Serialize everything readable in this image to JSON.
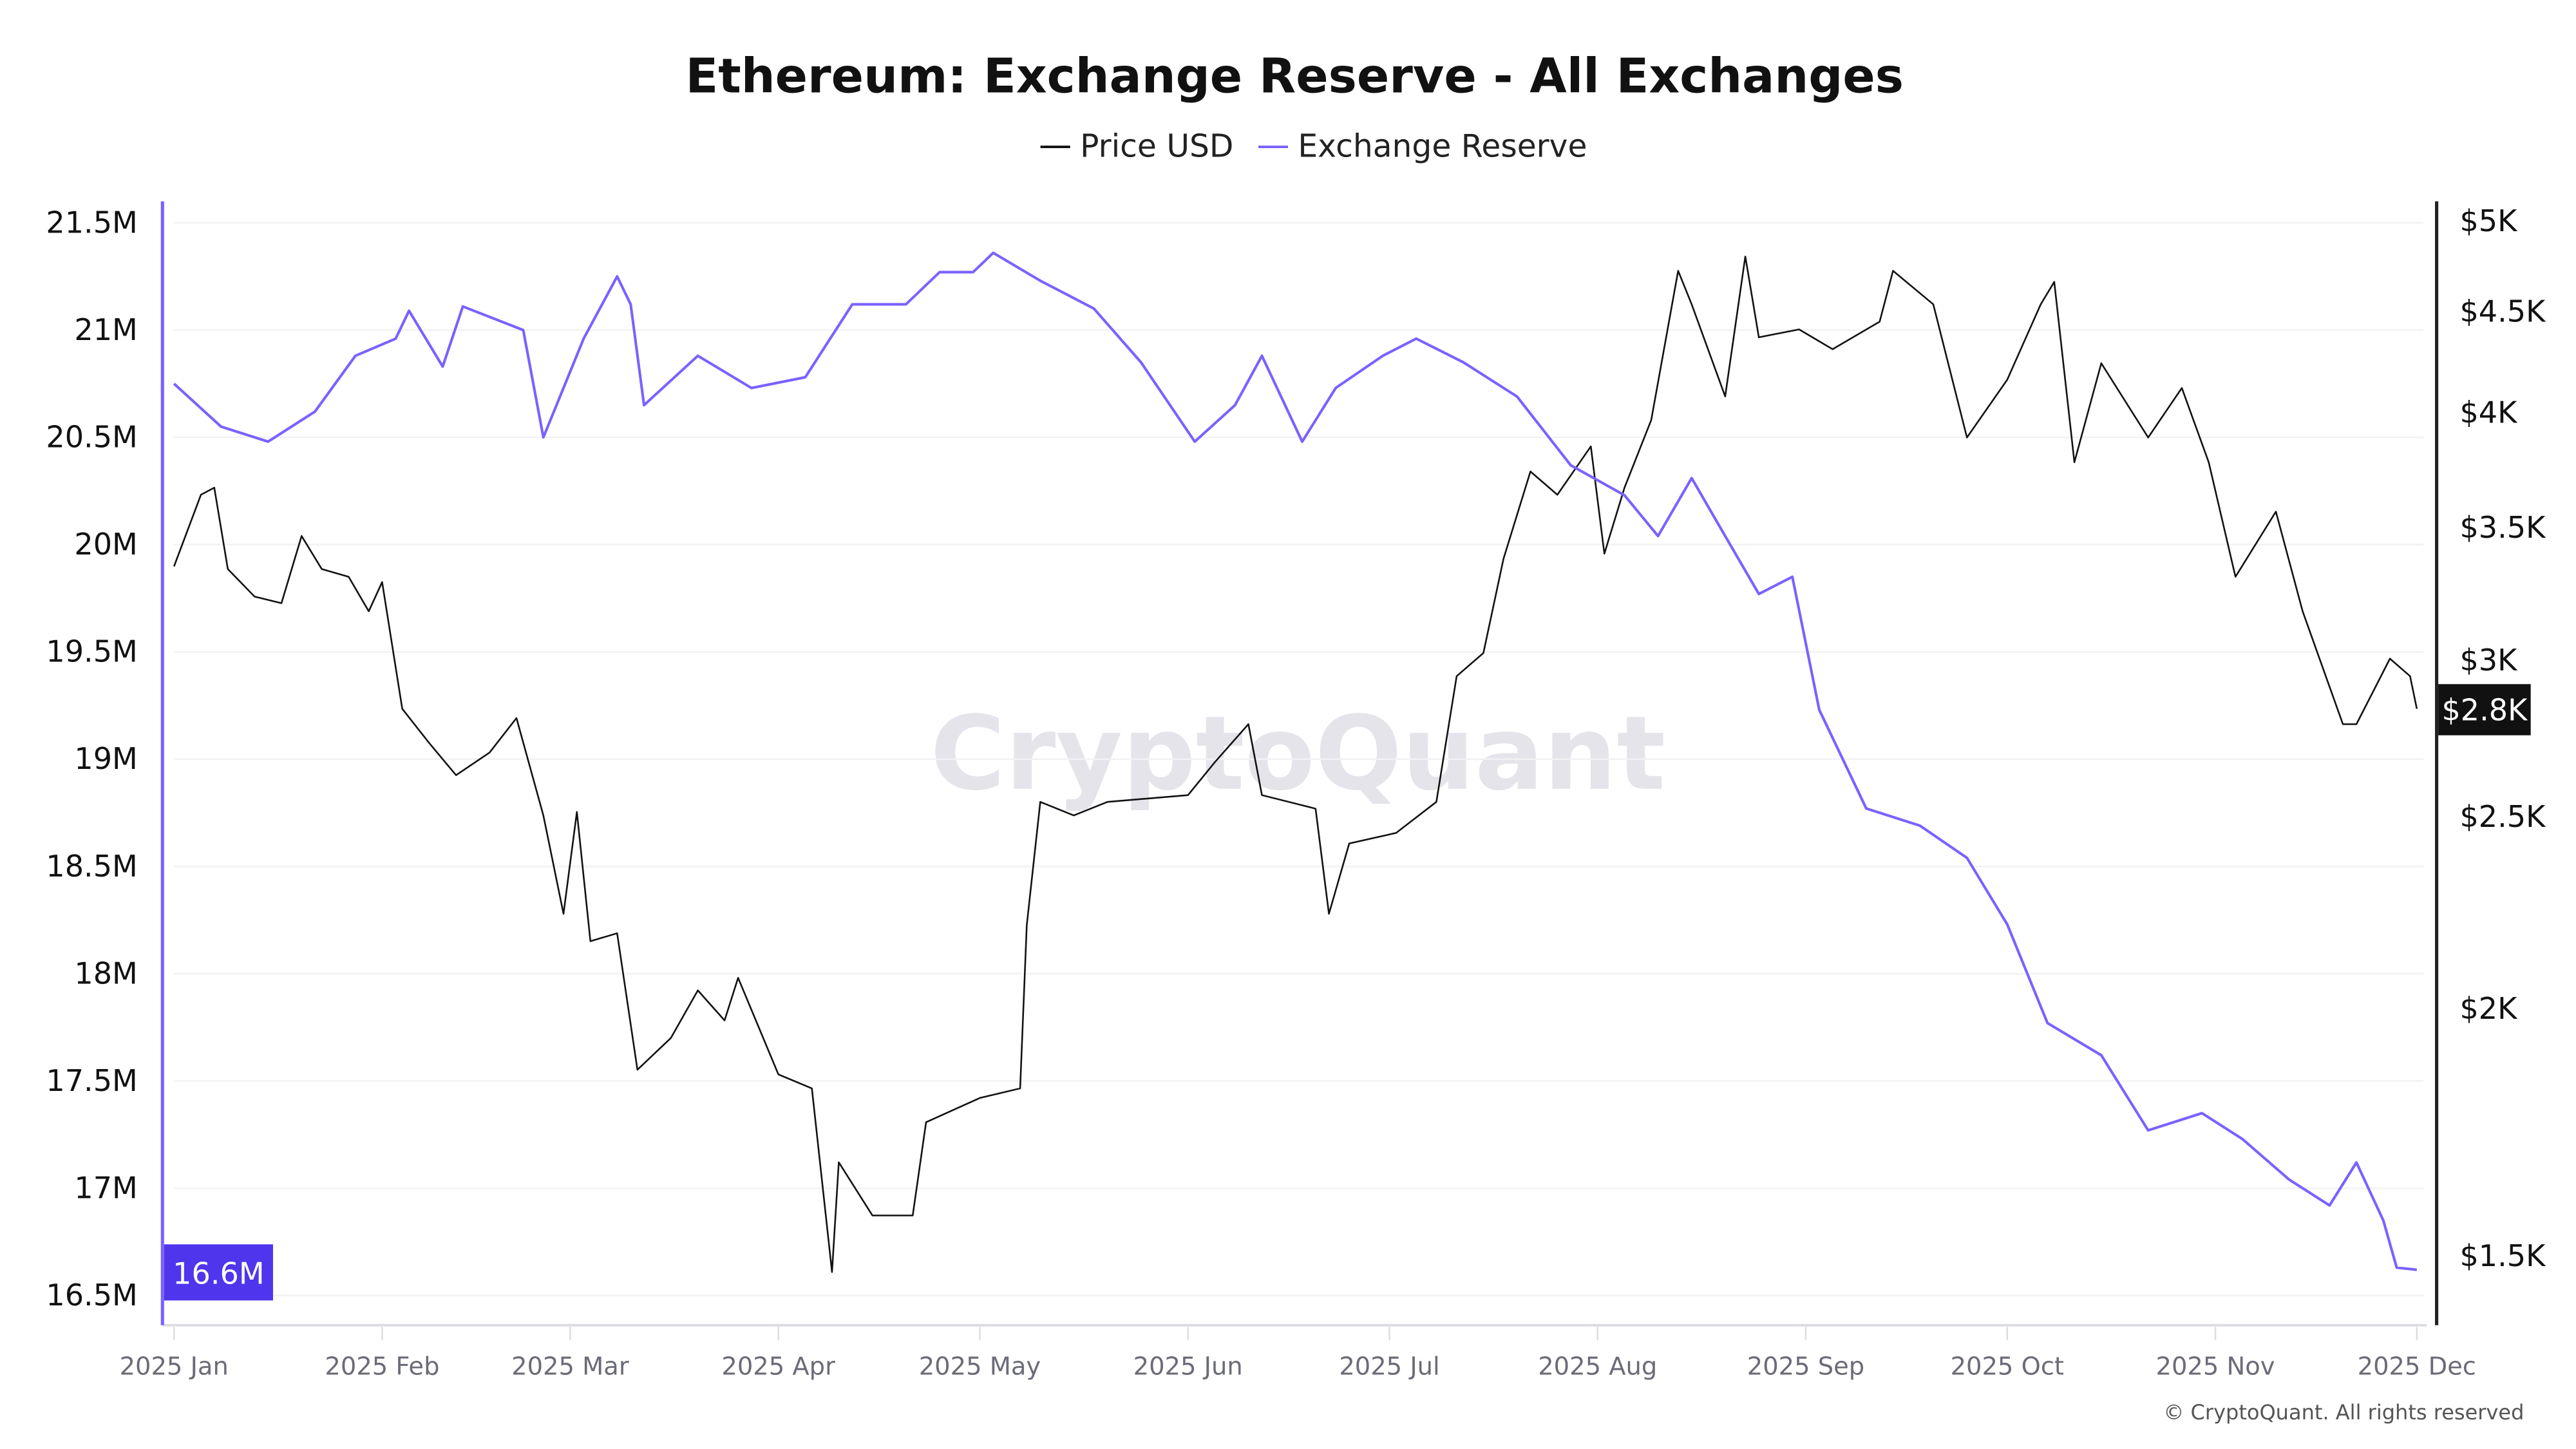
{
  "chart_data": {
    "type": "line",
    "title": "Ethereum: Exchange Reserve - All Exchanges",
    "watermark": "CryptoQuant",
    "copyright": "© CryptoQuant. All rights reserved",
    "legend_placement": "top-center",
    "grid": true,
    "x_ticks": [
      "2025 Jan",
      "2025 Feb",
      "2025 Mar",
      "2025 Apr",
      "2025 May",
      "2025 Jun",
      "2025 Jul",
      "2025 Aug",
      "2025 Sep",
      "2025 Oct",
      "2025 Nov",
      "2025 Dec"
    ],
    "x_tick_dates": [
      "2025-01-01",
      "2025-02-01",
      "2025-03-01",
      "2025-04-01",
      "2025-05-01",
      "2025-06-01",
      "2025-07-01",
      "2025-08-01",
      "2025-09-01",
      "2025-10-01",
      "2025-11-01",
      "2025-12-01"
    ],
    "left_axis": {
      "ticks": [
        "21.5M",
        "21M",
        "20.5M",
        "20M",
        "19.5M",
        "19M",
        "18.5M",
        "18M",
        "17.5M",
        "17M",
        "16.5M"
      ],
      "tick_values": [
        21.5,
        21,
        20.5,
        20,
        19.5,
        19,
        18.5,
        18,
        17.5,
        17,
        16.5
      ],
      "range": [
        16.4,
        21.6
      ],
      "unit": "M",
      "current_label": "16.6M",
      "current_value": 16.6,
      "color": "#7B61FF"
    },
    "right_axis": {
      "scale": "log",
      "ticks": [
        "$5K",
        "$4.5K",
        "$4K",
        "$3.5K",
        "$3K",
        "$2.5K",
        "$2K",
        "$1.5K"
      ],
      "tick_values": [
        5000,
        4500,
        4000,
        3500,
        3000,
        2500,
        2000,
        1500
      ],
      "current_label": "$2.8K",
      "current_value": 2830,
      "color": "#111111"
    },
    "series": [
      {
        "name": "Price USD",
        "axis": "right",
        "color": "#111111",
        "points": [
          [
            "2025-01-01",
            3340
          ],
          [
            "2025-01-05",
            3630
          ],
          [
            "2025-01-07",
            3660
          ],
          [
            "2025-01-09",
            3330
          ],
          [
            "2025-01-13",
            3225
          ],
          [
            "2025-01-17",
            3200
          ],
          [
            "2025-01-20",
            3460
          ],
          [
            "2025-01-23",
            3330
          ],
          [
            "2025-01-27",
            3300
          ],
          [
            "2025-01-30",
            3170
          ],
          [
            "2025-02-01",
            3280
          ],
          [
            "2025-02-04",
            2830
          ],
          [
            "2025-02-08",
            2720
          ],
          [
            "2025-02-12",
            2620
          ],
          [
            "2025-02-17",
            2690
          ],
          [
            "2025-02-21",
            2800
          ],
          [
            "2025-02-25",
            2500
          ],
          [
            "2025-02-28",
            2230
          ],
          [
            "2025-03-02",
            2510
          ],
          [
            "2025-03-04",
            2160
          ],
          [
            "2025-03-08",
            2180
          ],
          [
            "2025-03-11",
            1860
          ],
          [
            "2025-03-16",
            1930
          ],
          [
            "2025-03-20",
            2040
          ],
          [
            "2025-03-24",
            1970
          ],
          [
            "2025-03-26",
            2070
          ],
          [
            "2025-04-01",
            1850
          ],
          [
            "2025-04-06",
            1820
          ],
          [
            "2025-04-09",
            1470
          ],
          [
            "2025-04-10",
            1670
          ],
          [
            "2025-04-15",
            1570
          ],
          [
            "2025-04-21",
            1570
          ],
          [
            "2025-04-23",
            1750
          ],
          [
            "2025-05-01",
            1800
          ],
          [
            "2025-05-07",
            1820
          ],
          [
            "2025-05-08",
            2200
          ],
          [
            "2025-05-10",
            2540
          ],
          [
            "2025-05-15",
            2500
          ],
          [
            "2025-05-20",
            2540
          ],
          [
            "2025-06-01",
            2560
          ],
          [
            "2025-06-05",
            2660
          ],
          [
            "2025-06-10",
            2780
          ],
          [
            "2025-06-12",
            2560
          ],
          [
            "2025-06-20",
            2520
          ],
          [
            "2025-06-22",
            2230
          ],
          [
            "2025-06-25",
            2420
          ],
          [
            "2025-07-02",
            2450
          ],
          [
            "2025-07-08",
            2540
          ],
          [
            "2025-07-11",
            2940
          ],
          [
            "2025-07-15",
            3020
          ],
          [
            "2025-07-18",
            3370
          ],
          [
            "2025-07-22",
            3730
          ],
          [
            "2025-07-26",
            3630
          ],
          [
            "2025-07-31",
            3840
          ],
          [
            "2025-08-02",
            3390
          ],
          [
            "2025-08-05",
            3660
          ],
          [
            "2025-08-09",
            3960
          ],
          [
            "2025-08-13",
            4710
          ],
          [
            "2025-08-15",
            4530
          ],
          [
            "2025-08-20",
            4070
          ],
          [
            "2025-08-23",
            4790
          ],
          [
            "2025-08-25",
            4360
          ],
          [
            "2025-08-31",
            4400
          ],
          [
            "2025-09-05",
            4300
          ],
          [
            "2025-09-12",
            4440
          ],
          [
            "2025-09-14",
            4710
          ],
          [
            "2025-09-20",
            4530
          ],
          [
            "2025-09-25",
            3880
          ],
          [
            "2025-10-01",
            4150
          ],
          [
            "2025-10-06",
            4530
          ],
          [
            "2025-10-08",
            4650
          ],
          [
            "2025-10-11",
            3770
          ],
          [
            "2025-10-15",
            4230
          ],
          [
            "2025-10-22",
            3880
          ],
          [
            "2025-10-27",
            4110
          ],
          [
            "2025-10-31",
            3770
          ],
          [
            "2025-11-04",
            3300
          ],
          [
            "2025-11-10",
            3560
          ],
          [
            "2025-11-14",
            3170
          ],
          [
            "2025-11-20",
            2780
          ],
          [
            "2025-11-22",
            2780
          ],
          [
            "2025-11-27",
            3000
          ],
          [
            "2025-11-30",
            2940
          ],
          [
            "2025-12-01",
            2830
          ]
        ]
      },
      {
        "name": "Exchange Reserve",
        "axis": "left",
        "color": "#7B61FF",
        "points": [
          [
            "2025-01-01",
            20.75
          ],
          [
            "2025-01-08",
            20.55
          ],
          [
            "2025-01-15",
            20.48
          ],
          [
            "2025-01-22",
            20.62
          ],
          [
            "2025-01-28",
            20.88
          ],
          [
            "2025-02-03",
            20.96
          ],
          [
            "2025-02-05",
            21.09
          ],
          [
            "2025-02-10",
            20.83
          ],
          [
            "2025-02-13",
            21.11
          ],
          [
            "2025-02-22",
            21.0
          ],
          [
            "2025-02-25",
            20.5
          ],
          [
            "2025-03-03",
            20.96
          ],
          [
            "2025-03-08",
            21.25
          ],
          [
            "2025-03-10",
            21.12
          ],
          [
            "2025-03-12",
            20.65
          ],
          [
            "2025-03-20",
            20.88
          ],
          [
            "2025-03-28",
            20.73
          ],
          [
            "2025-04-05",
            20.78
          ],
          [
            "2025-04-12",
            21.12
          ],
          [
            "2025-04-20",
            21.12
          ],
          [
            "2025-04-25",
            21.27
          ],
          [
            "2025-04-30",
            21.27
          ],
          [
            "2025-05-03",
            21.36
          ],
          [
            "2025-05-10",
            21.23
          ],
          [
            "2025-05-18",
            21.1
          ],
          [
            "2025-05-25",
            20.85
          ],
          [
            "2025-06-02",
            20.48
          ],
          [
            "2025-06-08",
            20.65
          ],
          [
            "2025-06-12",
            20.88
          ],
          [
            "2025-06-18",
            20.48
          ],
          [
            "2025-06-23",
            20.73
          ],
          [
            "2025-06-30",
            20.88
          ],
          [
            "2025-07-05",
            20.96
          ],
          [
            "2025-07-12",
            20.85
          ],
          [
            "2025-07-20",
            20.69
          ],
          [
            "2025-07-28",
            20.37
          ],
          [
            "2025-08-05",
            20.23
          ],
          [
            "2025-08-10",
            20.04
          ],
          [
            "2025-08-15",
            20.31
          ],
          [
            "2025-08-20",
            20.04
          ],
          [
            "2025-08-25",
            19.77
          ],
          [
            "2025-08-30",
            19.85
          ],
          [
            "2025-09-03",
            19.23
          ],
          [
            "2025-09-10",
            18.77
          ],
          [
            "2025-09-18",
            18.69
          ],
          [
            "2025-09-25",
            18.54
          ],
          [
            "2025-10-01",
            18.23
          ],
          [
            "2025-10-07",
            17.77
          ],
          [
            "2025-10-15",
            17.62
          ],
          [
            "2025-10-22",
            17.27
          ],
          [
            "2025-10-30",
            17.35
          ],
          [
            "2025-11-05",
            17.23
          ],
          [
            "2025-11-12",
            17.04
          ],
          [
            "2025-11-18",
            16.92
          ],
          [
            "2025-11-22",
            17.12
          ],
          [
            "2025-11-26",
            16.85
          ],
          [
            "2025-11-28",
            16.63
          ],
          [
            "2025-12-01",
            16.62
          ]
        ]
      }
    ]
  }
}
